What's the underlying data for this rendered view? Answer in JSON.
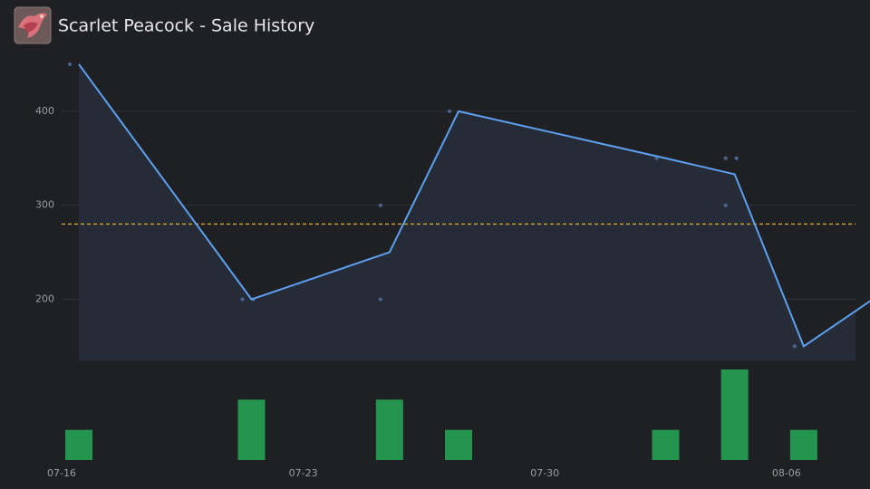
{
  "header": {
    "title": "Scarlet Peacock - Sale History"
  },
  "chart_data": {
    "type": "line",
    "xlim": [
      "07-16",
      "08-08"
    ],
    "xticks": [
      "07-16",
      "07-23",
      "07-30",
      "08-06"
    ],
    "ylim": [
      135,
      475
    ],
    "yticks": [
      200,
      300,
      400
    ],
    "grid": true,
    "line": {
      "color": "#5ea0f0",
      "fill": "#252c38",
      "x": [
        "07-16",
        "07-21",
        "07-25",
        "07-27",
        "08-02",
        "08-04",
        "08-06",
        "08-08"
      ],
      "values": [
        450,
        200,
        250,
        400,
        350,
        333,
        150,
        200
      ]
    },
    "sales": {
      "color": "#4b6791",
      "x": [
        "07-16",
        "07-21",
        "07-21",
        "07-25",
        "07-25",
        "07-27",
        "08-02",
        "08-04",
        "08-04",
        "08-04",
        "08-06"
      ],
      "values": [
        450,
        200,
        200,
        200,
        300,
        400,
        350,
        350,
        350,
        300,
        150
      ]
    },
    "volume": {
      "color": "#23954e",
      "x": [
        "07-16",
        "07-21",
        "07-25",
        "07-27",
        "08-02",
        "08-04",
        "08-06"
      ],
      "values": [
        1,
        2,
        2,
        1,
        1,
        3,
        1
      ]
    },
    "average": {
      "value": 280,
      "color": "#d4a72c"
    }
  }
}
